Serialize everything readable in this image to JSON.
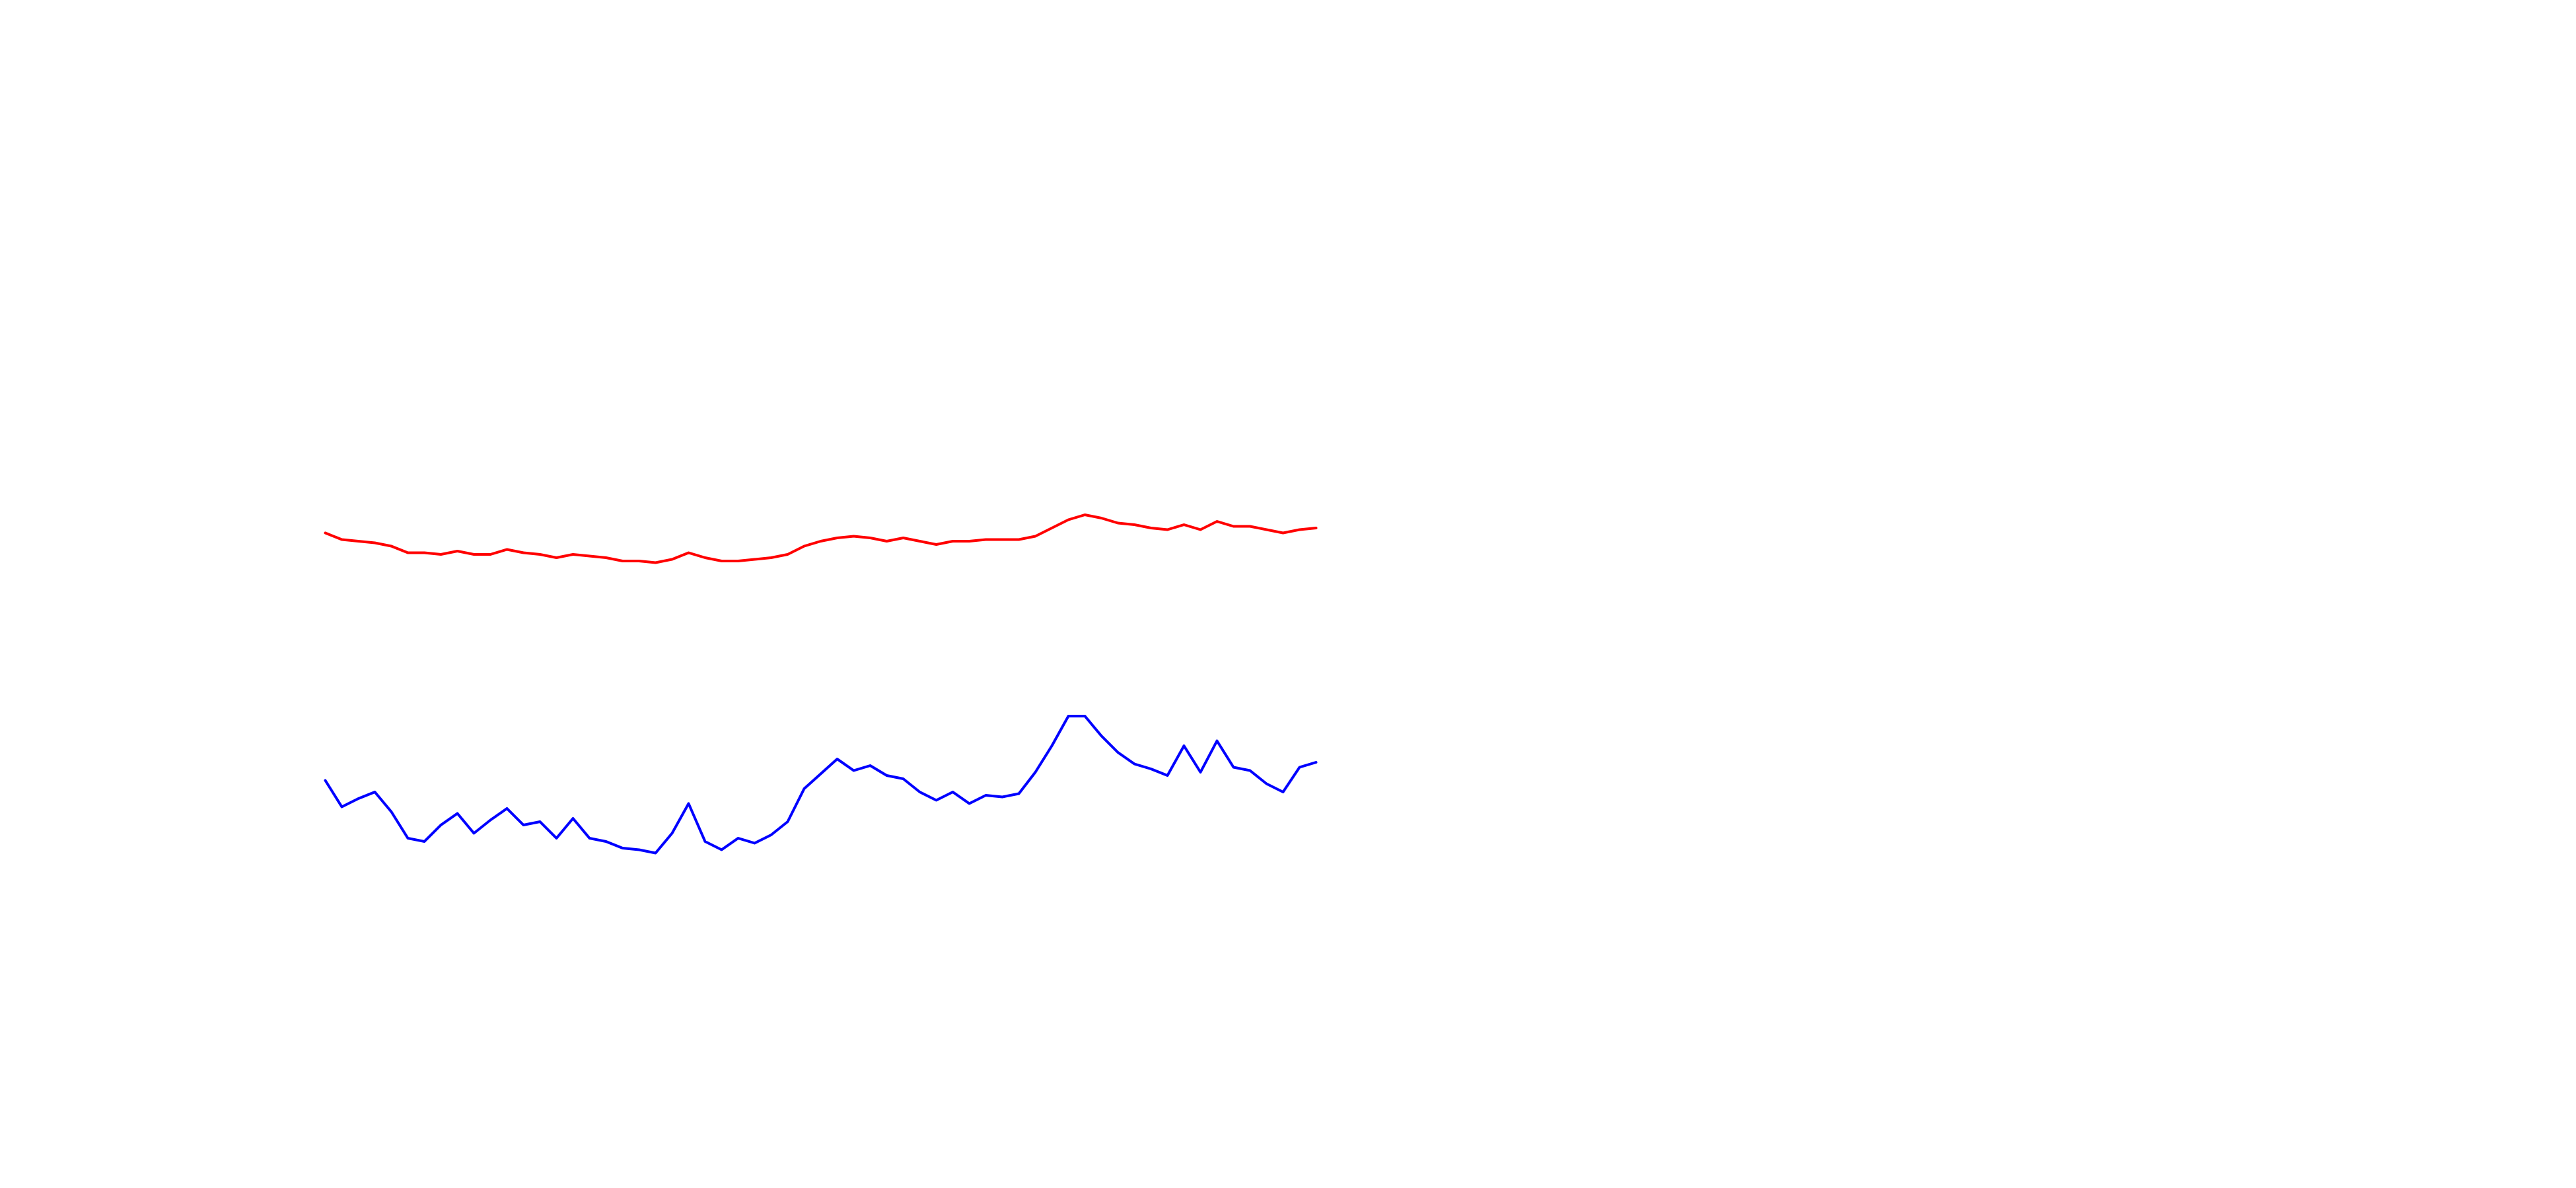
{
  "chart_data": {
    "type": "line",
    "x": [
      0,
      1,
      2,
      3,
      4,
      5,
      6,
      7,
      8,
      9,
      10,
      11,
      12,
      13,
      14,
      15,
      16,
      17,
      18,
      19,
      20,
      21,
      22,
      23,
      24,
      25,
      26,
      27,
      28,
      29,
      30,
      31,
      32,
      33,
      34,
      35,
      36,
      37,
      38,
      39,
      40,
      41,
      42,
      43,
      44,
      45,
      46,
      47,
      48,
      49,
      50,
      51,
      52,
      53,
      54,
      55,
      56,
      57,
      58,
      59,
      60
    ],
    "xlim": [
      0,
      60
    ],
    "ylim": [
      0,
      720
    ],
    "series": [
      {
        "color": "#ff0000",
        "values": [
          397,
          393,
          392,
          391,
          389,
          385,
          385,
          384,
          386,
          384,
          384,
          387,
          385,
          384,
          382,
          384,
          383,
          382,
          380,
          380,
          379,
          381,
          385,
          382,
          380,
          380,
          381,
          382,
          384,
          389,
          392,
          394,
          395,
          394,
          392,
          394,
          392,
          390,
          392,
          392,
          393,
          393,
          393,
          395,
          400,
          405,
          408,
          406,
          403,
          402,
          400,
          399,
          402,
          399,
          404,
          401,
          401,
          399,
          397,
          399,
          400
        ]
      },
      {
        "color": "#0000ff",
        "values": [
          247,
          231,
          236,
          240,
          228,
          212,
          210,
          220,
          227,
          215,
          223,
          230,
          220,
          222,
          212,
          224,
          212,
          210,
          206,
          205,
          203,
          215,
          233,
          210,
          205,
          212,
          209,
          214,
          222,
          242,
          251,
          260,
          253,
          256,
          250,
          248,
          240,
          235,
          240,
          233,
          238,
          237,
          239,
          252,
          268,
          286,
          286,
          274,
          264,
          257,
          254,
          250,
          268,
          252,
          271,
          255,
          253,
          245,
          240,
          255,
          258
        ]
      }
    ]
  }
}
